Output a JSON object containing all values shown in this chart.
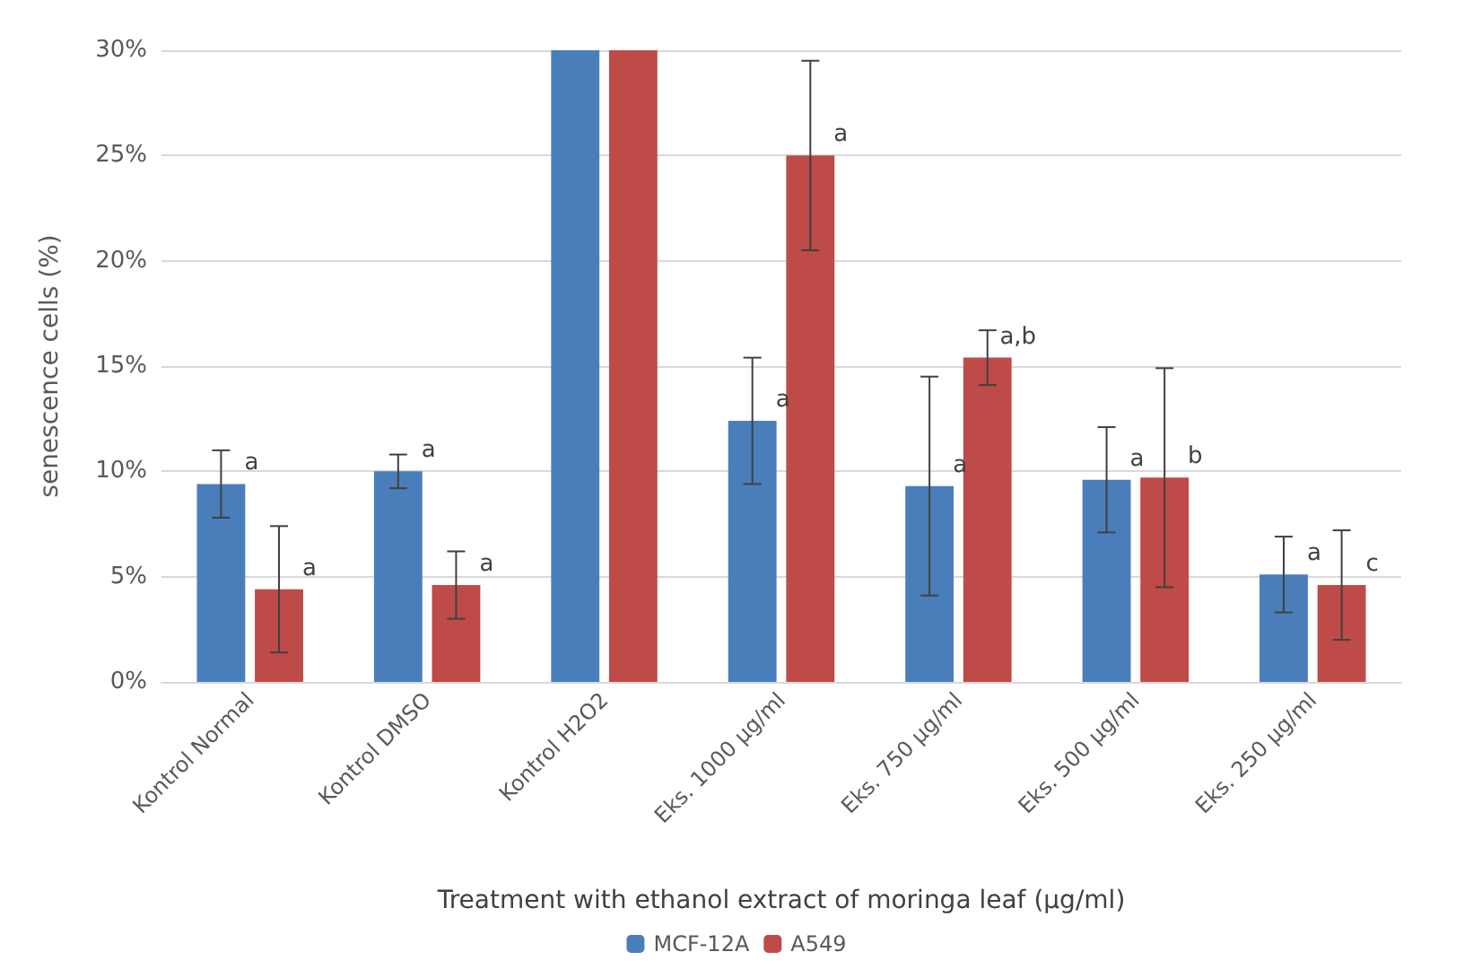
{
  "chart_data": {
    "type": "bar",
    "xlabel": "Treatment with ethanol extract of moringa leaf (µg/ml)",
    "ylabel": "senescence cells (%)",
    "categories": [
      "Kontrol Normal",
      "Kontrol DMSO",
      "Kontrol H2O2",
      "Eks. 1000 µg/ml",
      "Eks. 750 µg/ml",
      "Eks. 500 µg/ml",
      "Eks. 250 µg/ml"
    ],
    "series": [
      {
        "name": "MCF-12A",
        "color": "#4a7ebb",
        "values": [
          9.4,
          10.0,
          30,
          12.4,
          9.3,
          9.6,
          5.1
        ],
        "errors": [
          1.6,
          0.8,
          null,
          3.0,
          5.2,
          2.5,
          1.8
        ],
        "value_labels": [
          "a",
          "a",
          null,
          "a",
          "a",
          "a",
          "a"
        ]
      },
      {
        "name": "A549",
        "color": "#be4b48",
        "values": [
          4.4,
          4.6,
          30,
          25.0,
          15.4,
          9.7,
          4.6
        ],
        "errors": [
          3.0,
          1.6,
          null,
          4.5,
          1.3,
          5.2,
          2.6
        ],
        "value_labels": [
          "a",
          "a",
          null,
          "a",
          "a,b",
          "b",
          "c"
        ]
      }
    ],
    "ylim": [
      0,
      30
    ],
    "yticks": [
      {
        "value": 0,
        "label": "0%"
      },
      {
        "value": 5,
        "label": "5%"
      },
      {
        "value": 10,
        "label": "10%"
      },
      {
        "value": 15,
        "label": "15%"
      },
      {
        "value": 20,
        "label": "20%"
      },
      {
        "value": 25,
        "label": "25%"
      },
      {
        "value": 30,
        "label": "30%"
      }
    ],
    "grid": true,
    "legend": "bottom"
  }
}
